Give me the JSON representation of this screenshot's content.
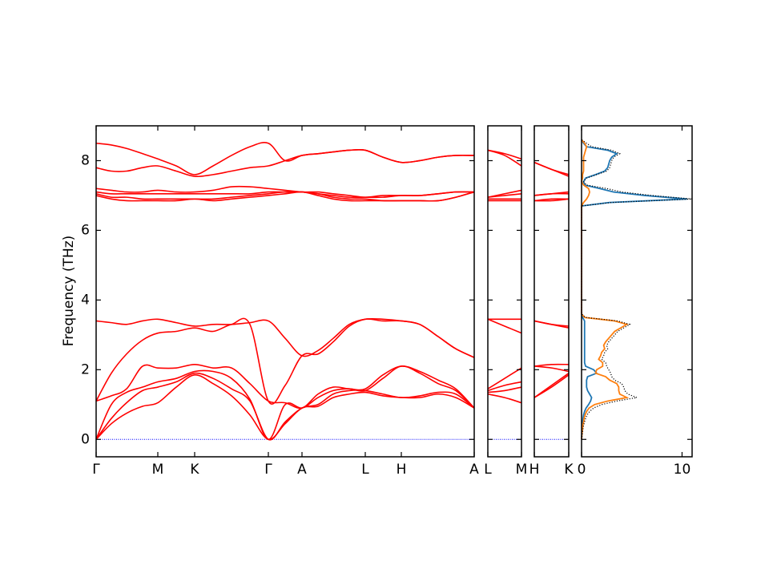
{
  "chart_data": [
    {
      "type": "line",
      "ylabel": "Frequency (THz)",
      "x": [
        0,
        0.19,
        0.38,
        0.58,
        0.77,
        1.0,
        1.23,
        1.46,
        1.69,
        1.92,
        2.15,
        2.36,
        2.57,
        2.77,
        2.96,
        3.16,
        3.36,
        3.58,
        3.81,
        4.04,
        4.27,
        4.49,
        4.72
      ],
      "xlim": [
        0,
        4.72
      ],
      "xticks": [
        {
          "value": 0,
          "label": "Γ"
        },
        {
          "value": 0.77,
          "label": "M"
        },
        {
          "value": 1.23,
          "label": "K"
        },
        {
          "value": 2.15,
          "label": "Γ"
        },
        {
          "value": 2.57,
          "label": "A"
        },
        {
          "value": 3.36,
          "label": "L"
        },
        {
          "value": 3.81,
          "label": "H"
        },
        {
          "value": 4.72,
          "label": "A"
        }
      ],
      "ylim": [
        -0.5,
        9
      ],
      "yticks": [
        0,
        2,
        4,
        6,
        8
      ],
      "show_ytick_labels": true,
      "zero_line": {
        "value": 0,
        "color": "#0000ff"
      },
      "series": [
        {
          "color": "#ff0000",
          "values": [
            0,
            0.45,
            0.75,
            0.95,
            1.05,
            1.5,
            1.85,
            1.6,
            1.25,
            0.7,
            0,
            0.45,
            0.9,
            0.95,
            1.2,
            1.3,
            1.35,
            1.25,
            1.2,
            1.2,
            1.3,
            1.2,
            0.9
          ]
        },
        {
          "color": "#ff0000",
          "values": [
            0,
            0.6,
            1.05,
            1.4,
            1.5,
            1.65,
            1.9,
            1.75,
            1.45,
            1.1,
            0,
            0.5,
            0.9,
            1.0,
            1.3,
            1.4,
            1.4,
            1.3,
            1.2,
            1.25,
            1.35,
            1.3,
            0.9
          ]
        },
        {
          "color": "#ff0000",
          "values": [
            0,
            1.0,
            1.35,
            1.5,
            1.65,
            1.75,
            1.95,
            1.95,
            1.75,
            1.15,
            0,
            1.0,
            0.9,
            1.2,
            1.4,
            1.45,
            1.4,
            1.75,
            2.1,
            1.9,
            1.6,
            1.4,
            0.9
          ]
        },
        {
          "color": "#ff0000",
          "values": [
            1.1,
            1.25,
            1.45,
            2.1,
            2.05,
            2.05,
            2.15,
            2.05,
            2.05,
            1.6,
            1.1,
            1.05,
            0.9,
            1.3,
            1.5,
            1.45,
            1.45,
            1.85,
            2.1,
            1.95,
            1.7,
            1.45,
            0.9
          ]
        },
        {
          "color": "#ff0000",
          "values": [
            1.1,
            1.9,
            2.45,
            2.85,
            3.05,
            3.1,
            3.2,
            3.1,
            3.3,
            3.3,
            1.1,
            1.55,
            2.4,
            2.45,
            2.8,
            3.25,
            3.45,
            3.4,
            3.4,
            3.3,
            2.95,
            2.6,
            2.35
          ]
        },
        {
          "color": "#ff0000",
          "values": [
            3.4,
            3.35,
            3.3,
            3.4,
            3.45,
            3.35,
            3.25,
            3.3,
            3.3,
            3.35,
            3.4,
            2.9,
            2.4,
            2.55,
            2.9,
            3.3,
            3.45,
            3.45,
            3.4,
            3.3,
            2.95,
            2.6,
            2.35
          ]
        },
        {
          "color": "#ff0000",
          "values": [
            7.0,
            6.9,
            6.85,
            6.85,
            6.85,
            6.85,
            6.9,
            6.85,
            6.9,
            6.95,
            7.0,
            7.05,
            7.1,
            7.0,
            6.9,
            6.85,
            6.85,
            6.85,
            6.85,
            6.85,
            6.85,
            6.95,
            7.1
          ]
        },
        {
          "color": "#ff0000",
          "values": [
            7.05,
            6.95,
            6.95,
            6.9,
            6.9,
            6.9,
            6.9,
            6.9,
            6.95,
            7.0,
            7.05,
            7.1,
            7.1,
            7.05,
            6.95,
            6.9,
            6.9,
            6.85,
            6.85,
            6.85,
            6.85,
            6.95,
            7.1
          ]
        },
        {
          "color": "#ff0000",
          "values": [
            7.1,
            7.05,
            7.05,
            7.05,
            7.05,
            7.05,
            7.05,
            7.05,
            7.05,
            7.05,
            7.1,
            7.1,
            7.1,
            7.05,
            7.0,
            6.95,
            6.95,
            6.95,
            7.0,
            7.0,
            7.05,
            7.1,
            7.1
          ]
        },
        {
          "color": "#ff0000",
          "values": [
            7.2,
            7.15,
            7.1,
            7.1,
            7.15,
            7.1,
            7.1,
            7.15,
            7.25,
            7.25,
            7.2,
            7.15,
            7.1,
            7.1,
            7.05,
            7.0,
            6.95,
            7.0,
            7.0,
            7.0,
            7.05,
            7.1,
            7.1
          ]
        },
        {
          "color": "#ff0000",
          "values": [
            7.8,
            7.7,
            7.7,
            7.8,
            7.85,
            7.7,
            7.55,
            7.6,
            7.7,
            7.8,
            7.85,
            8.0,
            8.15,
            8.2,
            8.25,
            8.3,
            8.3,
            8.1,
            7.95,
            8.0,
            8.1,
            8.15,
            8.15
          ]
        },
        {
          "color": "#ff0000",
          "values": [
            8.5,
            8.45,
            8.35,
            8.2,
            8.05,
            7.85,
            7.6,
            7.85,
            8.15,
            8.4,
            8.5,
            8.0,
            8.15,
            8.2,
            8.25,
            8.3,
            8.3,
            8.1,
            7.95,
            8.0,
            8.1,
            8.15,
            8.15
          ]
        }
      ]
    },
    {
      "type": "line",
      "x": [
        0,
        0.21,
        0.42
      ],
      "xlim": [
        0,
        0.42
      ],
      "xticks": [
        {
          "value": 0,
          "label": "L"
        },
        {
          "value": 0.42,
          "label": "M"
        }
      ],
      "ylim": [
        -0.5,
        9
      ],
      "yticks": [
        0,
        2,
        4,
        6,
        8
      ],
      "show_ytick_labels": false,
      "zero_line": {
        "value": 0,
        "color": "#0000ff"
      },
      "series": [
        {
          "color": "#ff0000",
          "values": [
            1.3,
            1.2,
            1.05
          ]
        },
        {
          "color": "#ff0000",
          "values": [
            1.35,
            1.4,
            1.5
          ]
        },
        {
          "color": "#ff0000",
          "values": [
            1.4,
            1.55,
            1.65
          ]
        },
        {
          "color": "#ff0000",
          "values": [
            1.45,
            1.75,
            2.05
          ]
        },
        {
          "color": "#ff0000",
          "values": [
            3.45,
            3.25,
            3.05
          ]
        },
        {
          "color": "#ff0000",
          "values": [
            3.45,
            3.45,
            3.45
          ]
        },
        {
          "color": "#ff0000",
          "values": [
            6.85,
            6.85,
            6.85
          ]
        },
        {
          "color": "#ff0000",
          "values": [
            6.9,
            6.9,
            6.9
          ]
        },
        {
          "color": "#ff0000",
          "values": [
            6.95,
            7.0,
            7.05
          ]
        },
        {
          "color": "#ff0000",
          "values": [
            6.95,
            7.05,
            7.15
          ]
        },
        {
          "color": "#ff0000",
          "values": [
            8.3,
            8.15,
            7.85
          ]
        },
        {
          "color": "#ff0000",
          "values": [
            8.3,
            8.2,
            8.05
          ]
        }
      ]
    },
    {
      "type": "line",
      "x": [
        0,
        0.215,
        0.43
      ],
      "xlim": [
        0,
        0.43
      ],
      "xticks": [
        {
          "value": 0,
          "label": "H"
        },
        {
          "value": 0.43,
          "label": "K"
        }
      ],
      "ylim": [
        -0.5,
        9
      ],
      "yticks": [
        0,
        2,
        4,
        6,
        8
      ],
      "show_ytick_labels": false,
      "zero_line": {
        "value": 0,
        "color": "#0000ff"
      },
      "series": [
        {
          "color": "#ff0000",
          "values": [
            1.2,
            1.5,
            1.85
          ]
        },
        {
          "color": "#ff0000",
          "values": [
            1.2,
            1.55,
            1.9
          ]
        },
        {
          "color": "#ff0000",
          "values": [
            2.1,
            2.05,
            1.95
          ]
        },
        {
          "color": "#ff0000",
          "values": [
            2.1,
            2.15,
            2.15
          ]
        },
        {
          "color": "#ff0000",
          "values": [
            3.4,
            3.3,
            3.2
          ]
        },
        {
          "color": "#ff0000",
          "values": [
            3.4,
            3.3,
            3.25
          ]
        },
        {
          "color": "#ff0000",
          "values": [
            6.85,
            6.85,
            6.9
          ]
        },
        {
          "color": "#ff0000",
          "values": [
            6.85,
            6.9,
            6.9
          ]
        },
        {
          "color": "#ff0000",
          "values": [
            7.0,
            7.05,
            7.05
          ]
        },
        {
          "color": "#ff0000",
          "values": [
            7.0,
            7.05,
            7.1
          ]
        },
        {
          "color": "#ff0000",
          "values": [
            7.95,
            7.75,
            7.55
          ]
        },
        {
          "color": "#ff0000",
          "values": [
            7.95,
            7.75,
            7.6
          ]
        }
      ]
    },
    {
      "type": "line",
      "orientation": "horizontal",
      "y": [
        0,
        0.1,
        0.2,
        0.3,
        0.4,
        0.5,
        0.6,
        0.7,
        0.8,
        0.9,
        1.0,
        1.1,
        1.2,
        1.3,
        1.4,
        1.5,
        1.6,
        1.7,
        1.8,
        1.9,
        2.0,
        2.1,
        2.2,
        2.3,
        2.4,
        2.5,
        2.6,
        2.7,
        2.8,
        2.9,
        3.0,
        3.1,
        3.2,
        3.3,
        3.4,
        3.5,
        3.6,
        3.7,
        3.8,
        3.9,
        4.0,
        4.1,
        4.2,
        4.3,
        4.4,
        4.5,
        4.6,
        4.7,
        4.8,
        4.9,
        5.0,
        5.1,
        5.2,
        5.3,
        5.4,
        5.5,
        5.6,
        5.7,
        5.8,
        5.9,
        6.0,
        6.1,
        6.2,
        6.3,
        6.4,
        6.5,
        6.6,
        6.7,
        6.8,
        6.9,
        7.0,
        7.1,
        7.2,
        7.3,
        7.4,
        7.5,
        7.6,
        7.7,
        7.8,
        7.9,
        8.0,
        8.1,
        8.2,
        8.3,
        8.4,
        8.5,
        8.6
      ],
      "xlim": [
        0,
        11
      ],
      "xticks": [
        0,
        10
      ],
      "ylim": [
        -0.5,
        9
      ],
      "yticks": [
        0,
        2,
        4,
        6,
        8
      ],
      "show_ytick_labels": false,
      "series": [
        {
          "color": "#1f77b4",
          "line_style": "solid",
          "values": [
            0,
            0.02,
            0.04,
            0.06,
            0.08,
            0.1,
            0.15,
            0.2,
            0.3,
            0.45,
            0.7,
            0.9,
            1.0,
            0.8,
            0.6,
            0.5,
            0.5,
            0.5,
            0.6,
            1.5,
            1.2,
            0.4,
            0.3,
            0.3,
            0.3,
            0.3,
            0.3,
            0.3,
            0.3,
            0.3,
            0.3,
            0.3,
            0.3,
            0.3,
            0.3,
            0.1,
            0,
            0,
            0,
            0,
            0,
            0,
            0,
            0,
            0,
            0,
            0,
            0,
            0,
            0,
            0,
            0,
            0,
            0,
            0,
            0,
            0,
            0,
            0,
            0,
            0,
            0,
            0,
            0,
            0,
            0,
            0,
            0,
            2.8,
            10.5,
            6.3,
            3.2,
            1.8,
            0.3,
            0.2,
            0.4,
            1.4,
            2.3,
            2.6,
            2.7,
            2.8,
            3.0,
            3.5,
            2.6,
            0.5,
            0.2,
            0
          ]
        },
        {
          "color": "#ff7f0e",
          "line_style": "solid",
          "values": [
            0,
            0.03,
            0.06,
            0.09,
            0.12,
            0.2,
            0.25,
            0.35,
            0.5,
            0.75,
            1.3,
            2.6,
            4.5,
            3.8,
            3.7,
            3.7,
            3.5,
            2.8,
            2.4,
            1.4,
            1.5,
            2.1,
            2.1,
            1.7,
            1.9,
            2.0,
            2.3,
            2.2,
            2.4,
            2.7,
            3.0,
            3.3,
            3.9,
            4.5,
            3.3,
            0.3,
            0,
            0,
            0,
            0,
            0,
            0,
            0,
            0,
            0,
            0,
            0,
            0,
            0,
            0,
            0,
            0,
            0,
            0,
            0,
            0,
            0,
            0,
            0,
            0,
            0,
            0,
            0,
            0,
            0,
            0,
            0,
            0,
            0.2,
            0.5,
            0.7,
            0.8,
            0.7,
            0.2,
            0,
            0.1,
            0.1,
            0.2,
            0.2,
            0.2,
            0.2,
            0.2,
            0.3,
            0.4,
            0.5,
            0.3,
            0
          ]
        },
        {
          "color": "#000000",
          "line_style": "dotted",
          "values": [
            0,
            0.05,
            0.1,
            0.15,
            0.2,
            0.3,
            0.4,
            0.55,
            0.8,
            1.2,
            2.0,
            3.5,
            5.5,
            4.6,
            4.3,
            4.2,
            4.0,
            3.3,
            3.0,
            2.9,
            2.7,
            2.5,
            2.4,
            2.0,
            2.2,
            2.3,
            2.6,
            2.5,
            2.7,
            3.0,
            3.3,
            3.6,
            4.2,
            4.8,
            3.6,
            0.4,
            0,
            0,
            0,
            0,
            0,
            0,
            0,
            0,
            0,
            0,
            0,
            0,
            0,
            0,
            0,
            0,
            0,
            0,
            0,
            0,
            0,
            0,
            0,
            0,
            0,
            0,
            0,
            0,
            0,
            0,
            0,
            0,
            3.0,
            11.0,
            7.0,
            4.0,
            2.5,
            0.5,
            0.2,
            0.5,
            1.5,
            2.5,
            2.8,
            2.9,
            3.0,
            3.2,
            3.8,
            3.0,
            1.0,
            0.5,
            0
          ]
        }
      ]
    }
  ]
}
